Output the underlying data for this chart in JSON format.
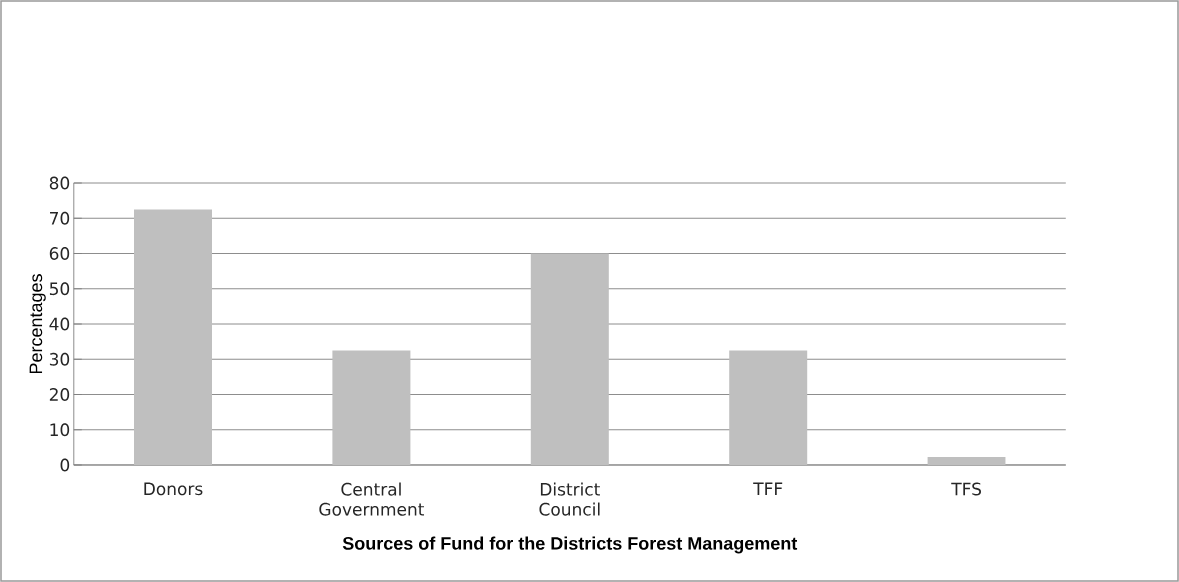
{
  "chart_data": {
    "type": "bar",
    "xlabel": "Sources of Fund for the Districts Forest Management",
    "ylabel": "Percentages",
    "categories": [
      "Donors",
      "Central Government",
      "District Council",
      "TFF",
      "TFS"
    ],
    "values": [
      72.5,
      32.5,
      60,
      32.5,
      2.3
    ],
    "color": "#bfbfbf",
    "ylim": [
      0,
      80
    ],
    "yticks": [
      0,
      10,
      20,
      30,
      40,
      50,
      60,
      70,
      80
    ],
    "grid": "y"
  }
}
